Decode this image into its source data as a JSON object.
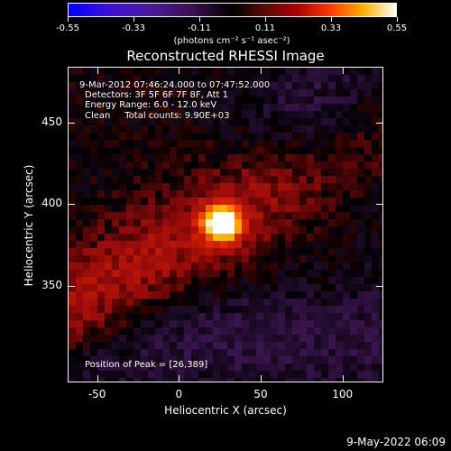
{
  "colorbar": {
    "tick_labels": [
      "-0.55",
      "-0.33",
      "-0.11",
      "0.11",
      "0.33",
      "0.55"
    ],
    "units": "(photons cm⁻² s⁻¹ asec⁻²)",
    "range": [
      -0.55,
      0.55
    ]
  },
  "title": "Reconstructed RHESSI Image",
  "annotations": {
    "time_range": "9-Mar-2012 07:46:24.000 to 07:47:52.000",
    "detectors": "Detectors: 3F 5F 6F 7F 8F, Att 1",
    "energy": "Energy Range: 6.0 - 12.0 keV",
    "method": "Clean     Total counts: 9.90E+03",
    "peak": "Position of Peak = [26,389]"
  },
  "footer": "9-May-2022 06:09",
  "chart_data": {
    "type": "heatmap",
    "title": "Reconstructed RHESSI Image",
    "xlabel": "Heliocentric X (arcsec)",
    "ylabel": "Heliocentric Y (arcsec)",
    "xlim": [
      -68,
      125
    ],
    "ylim": [
      291,
      484
    ],
    "x_ticks": [
      -50,
      0,
      50,
      100
    ],
    "y_ticks": [
      350,
      400,
      450
    ],
    "peak_position": [
      26,
      389
    ],
    "colorscale": [
      "#0000ff",
      "#4a1a9a",
      "#000000",
      "#b00000",
      "#ff3a00",
      "#ffb000",
      "#ffffff"
    ],
    "value_range": [
      -0.55,
      0.55
    ]
  }
}
